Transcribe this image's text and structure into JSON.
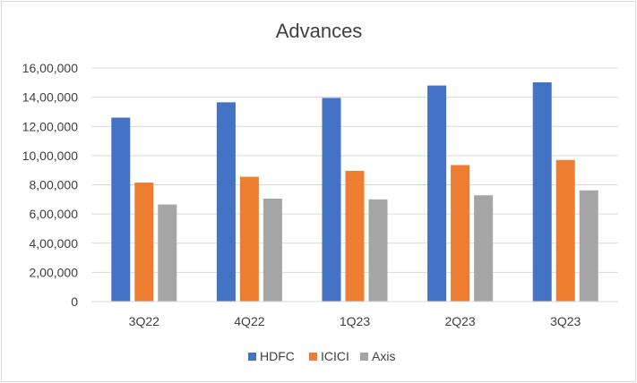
{
  "chart_data": {
    "type": "bar",
    "title": "Advances",
    "xlabel": "",
    "ylabel": "",
    "categories": [
      "3Q22",
      "4Q22",
      "1Q23",
      "2Q23",
      "3Q23"
    ],
    "series": [
      {
        "name": "HDFC",
        "color": "#4472c4",
        "values": [
          1260000,
          1365000,
          1395000,
          1480000,
          1502000
        ]
      },
      {
        "name": "ICICI",
        "color": "#ed7d31",
        "values": [
          815000,
          855000,
          895000,
          935000,
          970000
        ]
      },
      {
        "name": "Axis",
        "color": "#a5a5a5",
        "values": [
          665000,
          705000,
          700000,
          728000,
          762000
        ]
      }
    ],
    "ylim": [
      0,
      1600000
    ],
    "yticks": [
      0,
      200000,
      400000,
      600000,
      800000,
      1000000,
      1200000,
      1400000,
      1600000
    ],
    "ytick_labels": [
      "0",
      "2,00,000",
      "4,00,000",
      "6,00,000",
      "8,00,000",
      "10,00,000",
      "12,00,000",
      "14,00,000",
      "16,00,000"
    ],
    "grid": true,
    "legend_position": "bottom"
  }
}
